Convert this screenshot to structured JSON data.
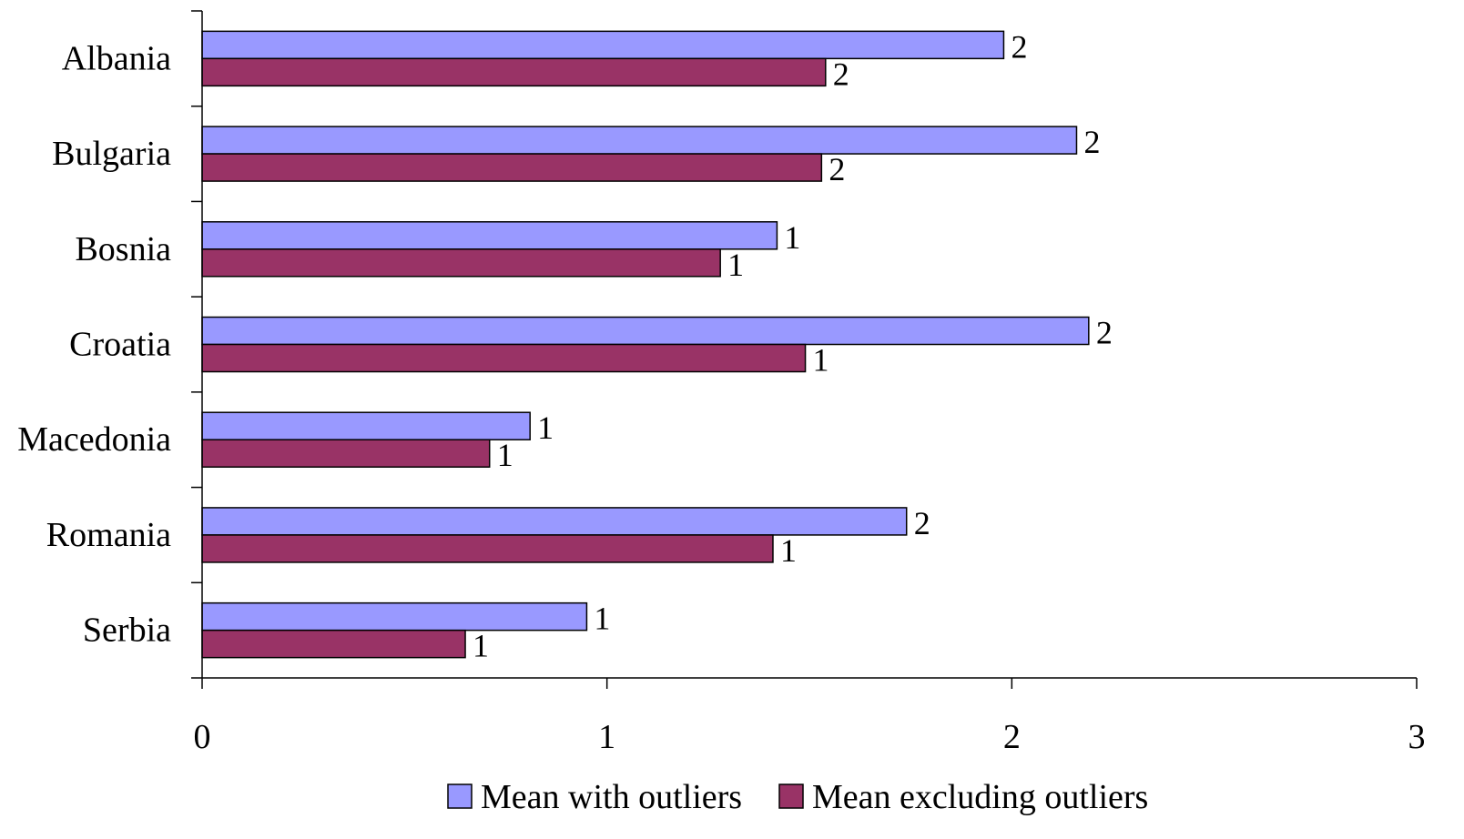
{
  "chart_data": {
    "type": "bar",
    "orientation": "horizontal",
    "categories": [
      "Albania",
      "Bulgaria",
      "Bosnia",
      "Croatia",
      "Macedonia",
      "Romania",
      "Serbia"
    ],
    "series": [
      {
        "name": "Mean with outliers",
        "color": "#9999ff",
        "values": [
          1.98,
          2.16,
          1.42,
          2.19,
          0.81,
          1.74,
          0.95
        ],
        "data_labels": [
          "2",
          "2",
          "1",
          "2",
          "1",
          "2",
          "1"
        ]
      },
      {
        "name": "Mean excluding outliers",
        "color": "#993366",
        "values": [
          1.54,
          1.53,
          1.28,
          1.49,
          0.71,
          1.41,
          0.65
        ],
        "data_labels": [
          "2",
          "2",
          "1",
          "1",
          "1",
          "1",
          "1"
        ]
      }
    ],
    "xlim": [
      0,
      3
    ],
    "x_ticks": [
      "0",
      "1",
      "2",
      "3"
    ],
    "grid": false,
    "legend_position": "bottom",
    "title": "",
    "xlabel": "",
    "ylabel": ""
  }
}
